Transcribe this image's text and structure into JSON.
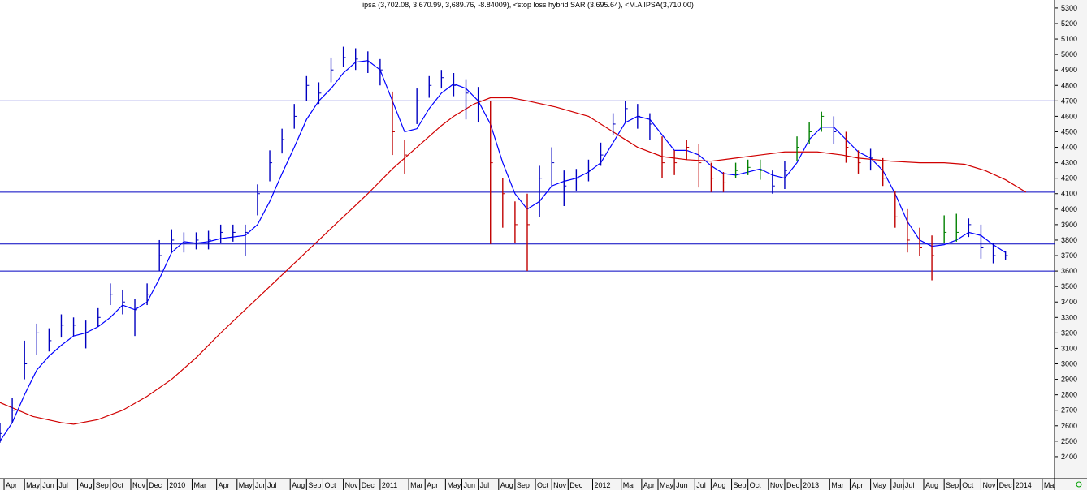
{
  "chart_data": {
    "type": "price",
    "title": "ipsa (3,702.08, 3,670.99, 3,689.76, -8.84009), <stop loss hybrid SAR (3,695.64), <M.A IPSA(3,710.00)",
    "xlim": [
      0,
      258
    ],
    "ylim": [
      2258,
      5352
    ],
    "xticks": [
      {
        "value": 1,
        "label": "Apr"
      },
      {
        "value": 6,
        "label": "May"
      },
      {
        "value": 10,
        "label": "Jun"
      },
      {
        "value": 14,
        "label": "Jul"
      },
      {
        "value": 19,
        "label": "Aug"
      },
      {
        "value": 23,
        "label": "Sep"
      },
      {
        "value": 27,
        "label": "Oct"
      },
      {
        "value": 32,
        "label": "Nov"
      },
      {
        "value": 36,
        "label": "Dec"
      },
      {
        "value": 41,
        "label": "2010"
      },
      {
        "value": 47,
        "label": "Mar"
      },
      {
        "value": 53,
        "label": "Apr"
      },
      {
        "value": 58,
        "label": "May"
      },
      {
        "value": 62,
        "label": "Jun"
      },
      {
        "value": 65,
        "label": "Jul"
      },
      {
        "value": 71,
        "label": "Aug"
      },
      {
        "value": 75,
        "label": "Sep"
      },
      {
        "value": 79,
        "label": "Oct"
      },
      {
        "value": 84,
        "label": "Nov"
      },
      {
        "value": 88,
        "label": "Dec"
      },
      {
        "value": 93,
        "label": "2011"
      },
      {
        "value": 100,
        "label": "Mar"
      },
      {
        "value": 104,
        "label": "Apr"
      },
      {
        "value": 109,
        "label": "May"
      },
      {
        "value": 113,
        "label": "Jun"
      },
      {
        "value": 117,
        "label": "Jul"
      },
      {
        "value": 122,
        "label": "Aug"
      },
      {
        "value": 126,
        "label": "Sep"
      },
      {
        "value": 131,
        "label": "Oct"
      },
      {
        "value": 135,
        "label": "Nov"
      },
      {
        "value": 139,
        "label": "Dec"
      },
      {
        "value": 145,
        "label": "2012"
      },
      {
        "value": 152,
        "label": "Mar"
      },
      {
        "value": 157,
        "label": "Apr"
      },
      {
        "value": 161,
        "label": "May"
      },
      {
        "value": 165,
        "label": "Jun"
      },
      {
        "value": 170,
        "label": "Jul"
      },
      {
        "value": 174,
        "label": "Aug"
      },
      {
        "value": 179,
        "label": "Sep"
      },
      {
        "value": 183,
        "label": "Oct"
      },
      {
        "value": 188,
        "label": "Nov"
      },
      {
        "value": 192,
        "label": "Dec"
      },
      {
        "value": 196,
        "label": "2013"
      },
      {
        "value": 203,
        "label": "Mar"
      },
      {
        "value": 208,
        "label": "Apr"
      },
      {
        "value": 213,
        "label": "May"
      },
      {
        "value": 218,
        "label": "Jun"
      },
      {
        "value": 221,
        "label": "Jul"
      },
      {
        "value": 226,
        "label": "Aug"
      },
      {
        "value": 231,
        "label": "Sep"
      },
      {
        "value": 235,
        "label": "Oct"
      },
      {
        "value": 240,
        "label": "Nov"
      },
      {
        "value": 244,
        "label": "Dec"
      },
      {
        "value": 248,
        "label": "2014"
      },
      {
        "value": 255,
        "label": "Mar"
      }
    ],
    "yticks": [
      2400,
      2500,
      2600,
      2700,
      2800,
      2900,
      3000,
      3100,
      3200,
      3300,
      3400,
      3500,
      3600,
      3700,
      3800,
      3900,
      4000,
      4100,
      4200,
      4300,
      4400,
      4500,
      4600,
      4700,
      4800,
      4900,
      5000,
      5100,
      5200,
      5300
    ],
    "hlines": [
      4700,
      4110,
      3775,
      3600
    ],
    "hline_color": "#0000c0",
    "bars": {
      "x": [
        0,
        3,
        6,
        9,
        12,
        15,
        18,
        21,
        24,
        27,
        30,
        33,
        36,
        39,
        42,
        45,
        48,
        51,
        54,
        57,
        60,
        63,
        66,
        69,
        72,
        75,
        78,
        81,
        84,
        87,
        90,
        93,
        96,
        99,
        102,
        105,
        108,
        111,
        114,
        117,
        120,
        123,
        126,
        129,
        132,
        135,
        138,
        141,
        144,
        147,
        150,
        153,
        156,
        159,
        162,
        165,
        168,
        171,
        174,
        177,
        180,
        183,
        186,
        189,
        192,
        195,
        198,
        201,
        204,
        207,
        210,
        213,
        216,
        219,
        222,
        225,
        228,
        231,
        234,
        237,
        240,
        243,
        246
      ],
      "close": [
        2550,
        2700,
        3000,
        3200,
        3150,
        3250,
        3250,
        3200,
        3300,
        3450,
        3400,
        3350,
        3450,
        3700,
        3800,
        3780,
        3800,
        3800,
        3850,
        3850,
        3850,
        4100,
        4300,
        4450,
        4600,
        4800,
        4750,
        4900,
        4980,
        4970,
        4950,
        4900,
        4500,
        4350,
        4700,
        4800,
        4850,
        4800,
        4750,
        4700,
        4300,
        4100,
        3900,
        3900,
        4200,
        4300,
        4150,
        4200,
        4250,
        4350,
        4550,
        4650,
        4600,
        4550,
        4300,
        4300,
        4400,
        4300,
        4200,
        4170,
        4250,
        4270,
        4250,
        4150,
        4250,
        4400,
        4500,
        4600,
        4500,
        4400,
        4300,
        4330,
        4200,
        3950,
        3800,
        3750,
        3700,
        3850,
        3850,
        3900,
        3750,
        3700,
        3700
      ],
      "high": [
        2620,
        2780,
        3150,
        3260,
        3230,
        3320,
        3300,
        3280,
        3360,
        3520,
        3480,
        3420,
        3520,
        3800,
        3870,
        3850,
        3850,
        3860,
        3900,
        3900,
        3900,
        4160,
        4380,
        4520,
        4680,
        4860,
        4820,
        4980,
        5050,
        5040,
        5020,
        4970,
        4760,
        4450,
        4780,
        4860,
        4900,
        4880,
        4840,
        4790,
        4700,
        4200,
        4050,
        4100,
        4280,
        4400,
        4250,
        4260,
        4320,
        4430,
        4620,
        4700,
        4680,
        4620,
        4470,
        4380,
        4450,
        4420,
        4300,
        4240,
        4300,
        4320,
        4320,
        4250,
        4310,
        4470,
        4560,
        4630,
        4600,
        4500,
        4380,
        4390,
        4330,
        4120,
        4000,
        3880,
        3830,
        3960,
        3970,
        3940,
        3900,
        3780,
        3730
      ],
      "low": [
        2490,
        2620,
        2900,
        3060,
        3080,
        3170,
        3180,
        3100,
        3240,
        3380,
        3320,
        3180,
        3380,
        3600,
        3720,
        3720,
        3740,
        3740,
        3780,
        3790,
        3700,
        3960,
        4180,
        4360,
        4520,
        4700,
        4680,
        4820,
        4920,
        4900,
        4880,
        4800,
        4350,
        4230,
        4550,
        4720,
        4780,
        4730,
        4580,
        4560,
        3775,
        3880,
        3780,
        3600,
        3950,
        4150,
        4020,
        4120,
        4180,
        4280,
        4480,
        4560,
        4520,
        4450,
        4200,
        4220,
        4320,
        4140,
        4110,
        4110,
        4200,
        4220,
        4190,
        4100,
        4130,
        4310,
        4420,
        4500,
        4420,
        4300,
        4230,
        4250,
        4150,
        3880,
        3720,
        3700,
        3540,
        3780,
        3790,
        3820,
        3680,
        3650,
        3670
      ],
      "colors": [
        "#0000c0",
        "#0000c0",
        "#0000c0",
        "#0000c0",
        "#0000c0",
        "#0000c0",
        "#0000c0",
        "#0000c0",
        "#0000c0",
        "#0000c0",
        "#0000c0",
        "#0000c0",
        "#0000c0",
        "#0000c0",
        "#0000c0",
        "#0000c0",
        "#0000c0",
        "#0000c0",
        "#0000c0",
        "#0000c0",
        "#0000c0",
        "#0000c0",
        "#0000c0",
        "#0000c0",
        "#0000c0",
        "#0000c0",
        "#0000c0",
        "#0000c0",
        "#0000c0",
        "#0000c0",
        "#0000c0",
        "#0000c0",
        "#c00000",
        "#c00000",
        "#0000c0",
        "#0000c0",
        "#0000c0",
        "#0000c0",
        "#0000c0",
        "#0000c0",
        "#c00000",
        "#c00000",
        "#c00000",
        "#c00000",
        "#0000c0",
        "#0000c0",
        "#0000c0",
        "#0000c0",
        "#0000c0",
        "#0000c0",
        "#0000c0",
        "#0000c0",
        "#0000c0",
        "#0000c0",
        "#c00000",
        "#c00000",
        "#c00000",
        "#c00000",
        "#c00000",
        "#c00000",
        "#008000",
        "#008000",
        "#008000",
        "#0000c0",
        "#0000c0",
        "#008000",
        "#008000",
        "#008000",
        "#0000c0",
        "#c00000",
        "#c00000",
        "#0000c0",
        "#c00000",
        "#c00000",
        "#c00000",
        "#c00000",
        "#c00000",
        "#008000",
        "#008000",
        "#0000c0",
        "#0000c0",
        "#0000c0",
        "#0000c0"
      ]
    },
    "lines": [
      {
        "color": "#0000ff",
        "x": [
          0,
          3,
          6,
          9,
          12,
          15,
          18,
          21,
          24,
          27,
          30,
          33,
          36,
          39,
          42,
          45,
          48,
          51,
          54,
          57,
          60,
          63,
          66,
          69,
          72,
          75,
          78,
          81,
          84,
          87,
          90,
          93,
          96,
          99,
          102,
          105,
          108,
          111,
          114,
          117,
          120,
          123,
          126,
          129,
          132,
          135,
          138,
          141,
          144,
          147,
          150,
          153,
          156,
          159,
          162,
          165,
          168,
          171,
          174,
          177,
          180,
          183,
          186,
          189,
          192,
          195,
          198,
          201,
          204,
          207,
          210,
          213,
          216,
          219,
          222,
          225,
          228,
          231,
          234,
          237,
          240,
          243,
          246
        ],
        "values": [
          2500,
          2620,
          2800,
          2960,
          3050,
          3120,
          3180,
          3200,
          3240,
          3300,
          3380,
          3350,
          3400,
          3550,
          3720,
          3790,
          3780,
          3790,
          3810,
          3820,
          3830,
          3900,
          4050,
          4230,
          4400,
          4580,
          4700,
          4780,
          4880,
          4950,
          4960,
          4900,
          4700,
          4500,
          4520,
          4650,
          4750,
          4810,
          4780,
          4700,
          4550,
          4300,
          4100,
          4000,
          4050,
          4150,
          4180,
          4200,
          4240,
          4300,
          4430,
          4560,
          4600,
          4580,
          4480,
          4380,
          4380,
          4350,
          4280,
          4230,
          4220,
          4240,
          4260,
          4220,
          4200,
          4300,
          4450,
          4530,
          4530,
          4450,
          4370,
          4330,
          4250,
          4100,
          3920,
          3800,
          3760,
          3770,
          3800,
          3850,
          3830,
          3770,
          3720
        ]
      },
      {
        "color": "#d00000",
        "x": [
          0,
          8,
          15,
          18,
          24,
          30,
          36,
          42,
          48,
          54,
          60,
          66,
          72,
          78,
          84,
          90,
          96,
          102,
          108,
          111,
          116,
          120,
          125,
          129,
          136,
          144,
          150,
          156,
          162,
          168,
          174,
          180,
          186,
          192,
          200,
          206,
          210,
          218,
          225,
          231,
          236,
          241,
          246,
          251
        ],
        "values": [
          2750,
          2660,
          2620,
          2610,
          2640,
          2700,
          2790,
          2900,
          3040,
          3200,
          3350,
          3500,
          3650,
          3800,
          3950,
          4100,
          4260,
          4400,
          4540,
          4600,
          4680,
          4720,
          4720,
          4700,
          4660,
          4600,
          4500,
          4400,
          4340,
          4320,
          4310,
          4330,
          4350,
          4370,
          4370,
          4350,
          4330,
          4310,
          4300,
          4300,
          4290,
          4250,
          4190,
          4110
        ]
      }
    ]
  }
}
